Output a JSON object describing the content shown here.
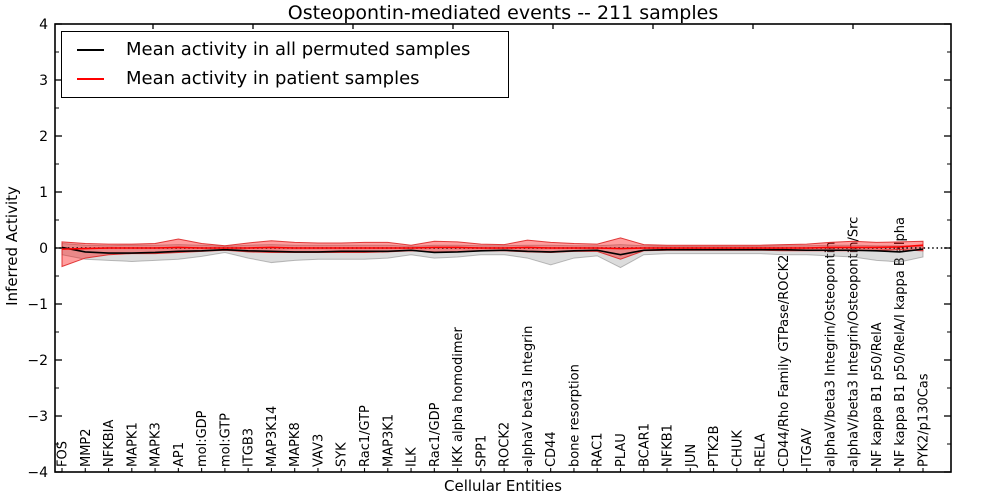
{
  "figure": {
    "title": "Osteopontin-mediated events -- 211 samples",
    "xlabel": "Cellular Entities",
    "ylabel": "Inferred Activity"
  },
  "legend": {
    "items": [
      {
        "label": "Mean activity in all permuted samples",
        "color": "#000000"
      },
      {
        "label": "Mean activity in patient samples",
        "color": "#ff0000"
      }
    ]
  },
  "chart_data": {
    "type": "line",
    "title": "Osteopontin-mediated events -- 211 samples",
    "xlabel": "Cellular Entities",
    "ylabel": "Inferred Activity",
    "ylim": [
      -4,
      4
    ],
    "y_ticks": [
      -4,
      -3,
      -2,
      -1,
      0,
      1,
      2,
      3,
      4
    ],
    "y_tick_labels": [
      "−4",
      "−3",
      "−2",
      "−1",
      "0",
      "1",
      "2",
      "3",
      "4"
    ],
    "grid": false,
    "zero_line": true,
    "legend_position": "upper left",
    "categories": [
      "FOS",
      "MMP2",
      "NFKBIA",
      "MAPK1",
      "MAPK3",
      "AP1",
      "mol:GDP",
      "mol:GTP",
      "ITGB3",
      "MAP3K14",
      "MAPK8",
      "VAV3",
      "SYK",
      "Rac1/GTP",
      "MAP3K1",
      "ILK",
      "Rac1/GDP",
      "IKK alpha homodimer",
      "SPP1",
      "ROCK2",
      "alphaV beta3 Integrin",
      "CD44",
      "bone resorption",
      "RAC1",
      "PLAU",
      "BCAR1",
      "NFKB1",
      "JUN",
      "PTK2B",
      "CHUK",
      "RELA",
      "CD44/Rho Family GTPase/ROCK2",
      "ITGAV",
      "alphaV/beta3 Integrin/Osteopontin",
      "alphaV/beta3 Integrin/Osteopontin/Src",
      "NF kappa B1 p50/RelA",
      "NF kappa B1 p50/RelA/I kappa B alpha",
      "PYK2/p130Cas"
    ],
    "series": [
      {
        "name": "Permuted samples activity range",
        "type": "band",
        "fill": "rgba(130,130,130,0.28)",
        "stroke": "rgba(110,110,110,0.45)",
        "upper": [
          0.08,
          0.05,
          0.04,
          0.05,
          0.05,
          0.06,
          0.05,
          0.03,
          0.05,
          0.06,
          0.05,
          0.05,
          0.05,
          0.05,
          0.05,
          0.03,
          0.05,
          0.05,
          0.04,
          0.04,
          0.05,
          0.05,
          0.04,
          0.04,
          0.06,
          0.04,
          0.03,
          0.03,
          0.03,
          0.03,
          0.03,
          0.04,
          0.04,
          0.05,
          0.05,
          0.04,
          0.04,
          0.03
        ],
        "lower": [
          -0.12,
          -0.2,
          -0.22,
          -0.24,
          -0.22,
          -0.2,
          -0.15,
          -0.08,
          -0.18,
          -0.26,
          -0.22,
          -0.2,
          -0.2,
          -0.2,
          -0.18,
          -0.12,
          -0.18,
          -0.16,
          -0.12,
          -0.12,
          -0.18,
          -0.3,
          -0.18,
          -0.14,
          -0.35,
          -0.12,
          -0.1,
          -0.1,
          -0.1,
          -0.1,
          -0.1,
          -0.12,
          -0.12,
          -0.14,
          -0.16,
          -0.22,
          -0.25,
          -0.16
        ]
      },
      {
        "name": "Patient samples activity range",
        "type": "band",
        "fill": "rgba(255,0,0,0.38)",
        "stroke": "rgba(220,30,30,0.85)",
        "upper": [
          0.11,
          0.08,
          0.07,
          0.07,
          0.08,
          0.16,
          0.08,
          0.04,
          0.09,
          0.13,
          0.1,
          0.09,
          0.09,
          0.1,
          0.1,
          0.05,
          0.12,
          0.11,
          0.07,
          0.06,
          0.14,
          0.1,
          0.08,
          0.07,
          0.18,
          0.06,
          0.05,
          0.05,
          0.05,
          0.05,
          0.05,
          0.06,
          0.07,
          0.1,
          0.12,
          0.1,
          0.11,
          0.12
        ],
        "lower": [
          -0.33,
          -0.18,
          -0.12,
          -0.1,
          -0.1,
          -0.08,
          -0.06,
          -0.04,
          -0.07,
          -0.08,
          -0.08,
          -0.08,
          -0.08,
          -0.08,
          -0.07,
          -0.05,
          -0.07,
          -0.07,
          -0.05,
          -0.05,
          -0.07,
          -0.08,
          -0.06,
          -0.06,
          -0.2,
          -0.05,
          -0.04,
          -0.04,
          -0.04,
          -0.04,
          -0.04,
          -0.05,
          -0.05,
          -0.05,
          -0.05,
          -0.04,
          -0.03,
          -0.05
        ]
      },
      {
        "name": "Mean activity in all permuted samples",
        "type": "line",
        "color": "#000000",
        "values": [
          0.01,
          -0.07,
          -0.09,
          -0.09,
          -0.08,
          -0.06,
          -0.05,
          -0.03,
          -0.05,
          -0.06,
          -0.07,
          -0.07,
          -0.06,
          -0.06,
          -0.06,
          -0.04,
          -0.08,
          -0.07,
          -0.05,
          -0.04,
          -0.06,
          -0.07,
          -0.05,
          -0.04,
          -0.12,
          -0.04,
          -0.03,
          -0.03,
          -0.03,
          -0.03,
          -0.03,
          -0.03,
          -0.04,
          -0.04,
          -0.04,
          -0.05,
          -0.07,
          -0.02
        ]
      },
      {
        "name": "Mean activity in patient samples",
        "type": "line",
        "color": "#ff0000",
        "values": [
          -0.02,
          -0.01,
          0.0,
          0.0,
          0.0,
          0.01,
          0.0,
          0.0,
          0.0,
          0.01,
          0.0,
          0.0,
          0.0,
          0.0,
          0.0,
          0.0,
          0.01,
          0.01,
          0.0,
          0.0,
          0.01,
          0.0,
          0.0,
          0.0,
          -0.01,
          0.0,
          0.0,
          0.0,
          0.0,
          0.0,
          0.0,
          0.0,
          0.0,
          0.01,
          0.01,
          0.01,
          0.02,
          0.05
        ]
      }
    ]
  }
}
